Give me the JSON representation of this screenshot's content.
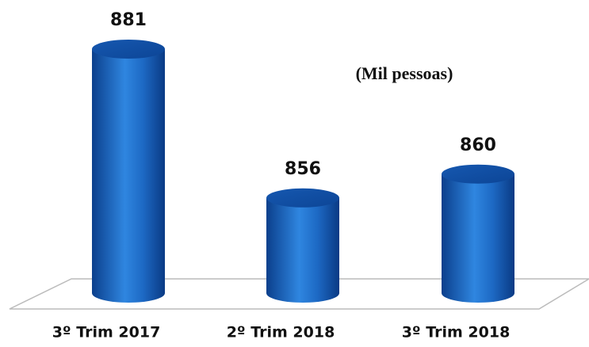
{
  "chart_data": {
    "type": "bar",
    "annotation": "(Mil pessoas)",
    "categories": [
      "3º Trim 2017",
      "2º Trim 2018",
      "3º Trim 2018"
    ],
    "values": [
      881,
      856,
      860
    ],
    "color": "#1f6cc8",
    "ylim": [
      840,
      890
    ]
  }
}
